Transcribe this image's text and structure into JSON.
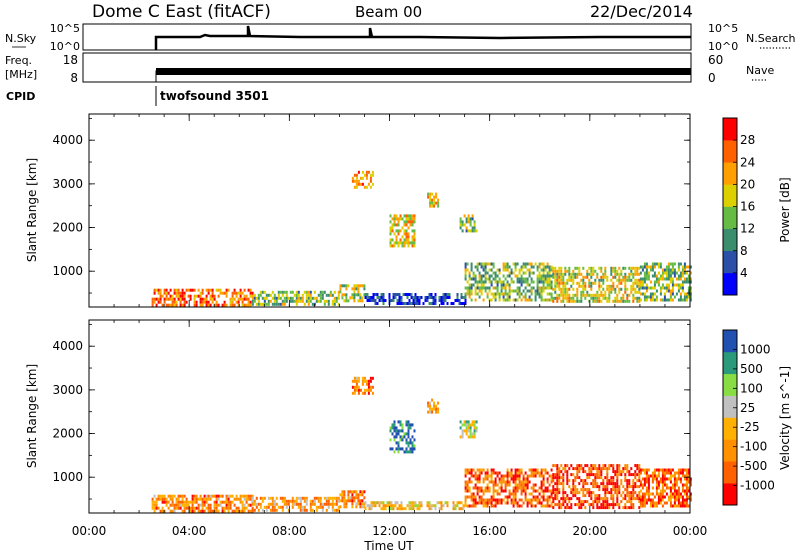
{
  "header": {
    "title": "Dome C East (fitACF)",
    "beam": "Beam 00",
    "date": "22/Dec/2014"
  },
  "param_panels": {
    "nsky_label": "N.Sky",
    "nsky_ticks": [
      "10^5",
      "10^0"
    ],
    "nsearch_label": "N.Search",
    "nsearch_ticks": [
      "10^5",
      "10^0"
    ],
    "freq_label_line1": "Freq.",
    "freq_label_line2": "[MHz]",
    "freq_ticks": [
      "18",
      "8"
    ],
    "nave_label": "Nave",
    "nave_ticks": [
      "60",
      "0"
    ],
    "cpid_label": "CPID",
    "cpid_value": "twofsound 3501"
  },
  "colors": {
    "power": [
      "#0000ff",
      "#2a50a8",
      "#3c8c6e",
      "#66bb44",
      "#ddd000",
      "#ffa000",
      "#ff6000",
      "#ff0000"
    ],
    "velocity": [
      "#ff0000",
      "#ff6000",
      "#ff9000",
      "#ffb000",
      "#c0c0c0",
      "#88dd44",
      "#2a9a7a",
      "#2050b0"
    ],
    "ground_scatter": "#a0a0a0"
  },
  "chart_data": [
    {
      "type": "heatmap",
      "title": "",
      "ylabel": "Slant Range [km]",
      "xlabel": "",
      "x_ticks": [
        "00:00",
        "04:00",
        "08:00",
        "12:00",
        "16:00",
        "20:00",
        "00:00"
      ],
      "y_ticks": [
        1000,
        2000,
        3000,
        4000
      ],
      "xlim_hours": [
        0,
        24
      ],
      "ylim_km": [
        180,
        4600
      ],
      "colorbar_label": "Power [dB]",
      "colorbar_ticks": [
        "4",
        "8",
        "12",
        "16",
        "20",
        "24",
        "28"
      ],
      "colorbar_range": [
        0,
        32
      ],
      "regions": [
        {
          "start_hr": 2.5,
          "end_hr": 6.5,
          "min_km": 250,
          "max_km": 600,
          "level": 0.8
        },
        {
          "start_hr": 6.5,
          "end_hr": 10.0,
          "min_km": 250,
          "max_km": 550,
          "level": 0.45
        },
        {
          "start_hr": 10.0,
          "end_hr": 11.0,
          "min_km": 300,
          "max_km": 700,
          "level": 0.5
        },
        {
          "start_hr": 11.0,
          "end_hr": 15.0,
          "min_km": 250,
          "max_km": 500,
          "level": 0.15
        },
        {
          "start_hr": 15.0,
          "end_hr": 18.5,
          "min_km": 350,
          "max_km": 1200,
          "level": 0.45
        },
        {
          "start_hr": 18.5,
          "end_hr": 22.0,
          "min_km": 300,
          "max_km": 1100,
          "level": 0.55
        },
        {
          "start_hr": 22.0,
          "end_hr": 24.0,
          "min_km": 350,
          "max_km": 1200,
          "level": 0.45
        },
        {
          "start_hr": 10.5,
          "end_hr": 11.3,
          "min_km": 2900,
          "max_km": 3300,
          "level": 0.75
        },
        {
          "start_hr": 12.0,
          "end_hr": 13.0,
          "min_km": 1600,
          "max_km": 2300,
          "level": 0.6
        },
        {
          "start_hr": 13.5,
          "end_hr": 13.9,
          "min_km": 2500,
          "max_km": 2800,
          "level": 0.6
        },
        {
          "start_hr": 14.8,
          "end_hr": 15.5,
          "min_km": 1900,
          "max_km": 2300,
          "level": 0.45
        }
      ]
    },
    {
      "type": "heatmap",
      "title": "",
      "ylabel": "Slant Range [km]",
      "xlabel": "Time UT",
      "x_ticks": [
        "00:00",
        "04:00",
        "08:00",
        "12:00",
        "16:00",
        "20:00",
        "00:00"
      ],
      "y_ticks": [
        1000,
        2000,
        3000,
        4000
      ],
      "xlim_hours": [
        0,
        24
      ],
      "ylim_km": [
        180,
        4600
      ],
      "colorbar_label": "Velocity [m s^-1]",
      "colorbar_ticks": [
        "-1000",
        "-500",
        "-100",
        "-25",
        "25",
        "100",
        "500",
        "1000"
      ],
      "regions": [
        {
          "start_hr": 2.5,
          "end_hr": 6.5,
          "min_km": 250,
          "max_km": 600,
          "level": 0.3
        },
        {
          "start_hr": 6.5,
          "end_hr": 10.0,
          "min_km": 250,
          "max_km": 550,
          "level": 0.35
        },
        {
          "start_hr": 10.0,
          "end_hr": 11.0,
          "min_km": 300,
          "max_km": 700,
          "level": 0.3
        },
        {
          "start_hr": 11.0,
          "end_hr": 15.0,
          "min_km": 250,
          "max_km": 450,
          "level": 0.5
        },
        {
          "start_hr": 15.0,
          "end_hr": 18.5,
          "min_km": 350,
          "max_km": 1200,
          "level": 0.2
        },
        {
          "start_hr": 18.5,
          "end_hr": 22.0,
          "min_km": 300,
          "max_km": 1300,
          "level": 0.15
        },
        {
          "start_hr": 22.0,
          "end_hr": 24.0,
          "min_km": 350,
          "max_km": 1200,
          "level": 0.2
        },
        {
          "start_hr": 10.5,
          "end_hr": 11.3,
          "min_km": 2900,
          "max_km": 3300,
          "level": 0.3
        },
        {
          "start_hr": 12.0,
          "end_hr": 13.0,
          "min_km": 1600,
          "max_km": 2300,
          "level": 0.9
        },
        {
          "start_hr": 13.5,
          "end_hr": 13.9,
          "min_km": 2500,
          "max_km": 2800,
          "level": 0.35
        },
        {
          "start_hr": 14.8,
          "end_hr": 15.5,
          "min_km": 1900,
          "max_km": 2300,
          "level": 0.6
        }
      ]
    }
  ]
}
